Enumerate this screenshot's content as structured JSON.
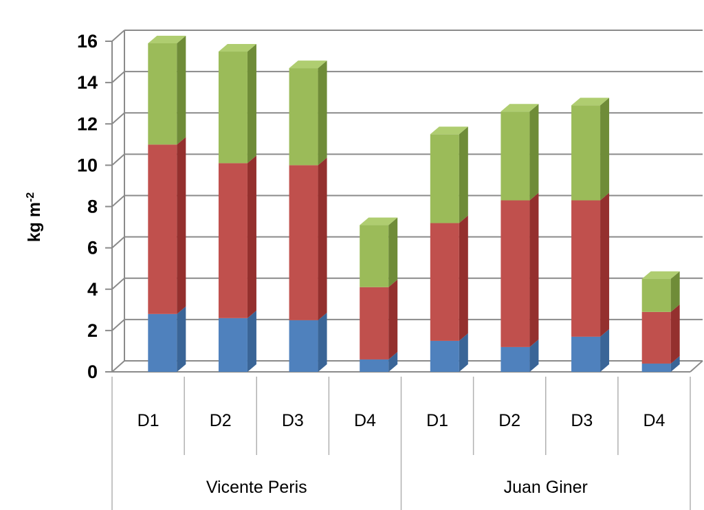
{
  "chart_data": {
    "type": "bar",
    "stacked": true,
    "three_d": true,
    "ylabel": "kg m",
    "ylabel_superscript": "-2",
    "ylim": [
      0,
      16
    ],
    "yticks": [
      "0",
      "2",
      "4",
      "6",
      "8",
      "10",
      "12",
      "14",
      "16"
    ],
    "grid": true,
    "legend": "none",
    "groups": [
      {
        "name": "Vicente Peris",
        "categories": [
          "D1",
          "D2",
          "D3",
          "D4"
        ]
      },
      {
        "name": "Juan Giner",
        "categories": [
          "D1",
          "D2",
          "D3",
          "D4"
        ]
      }
    ],
    "series": [
      {
        "color": "#4f81bd",
        "side": "#3a6597",
        "top": "#6e9ad2",
        "values": [
          2.8,
          2.6,
          2.5,
          0.6,
          1.5,
          1.2,
          1.7,
          0.4
        ]
      },
      {
        "color": "#c0504d",
        "side": "#94302e",
        "top": "#d46f6c",
        "values": [
          8.2,
          7.5,
          7.5,
          3.5,
          5.7,
          7.1,
          6.6,
          2.5
        ]
      },
      {
        "color": "#9bbb59",
        "side": "#6f8c38",
        "top": "#afcd70",
        "values": [
          4.9,
          5.4,
          4.7,
          3.0,
          4.3,
          4.3,
          4.6,
          1.6
        ]
      }
    ]
  }
}
